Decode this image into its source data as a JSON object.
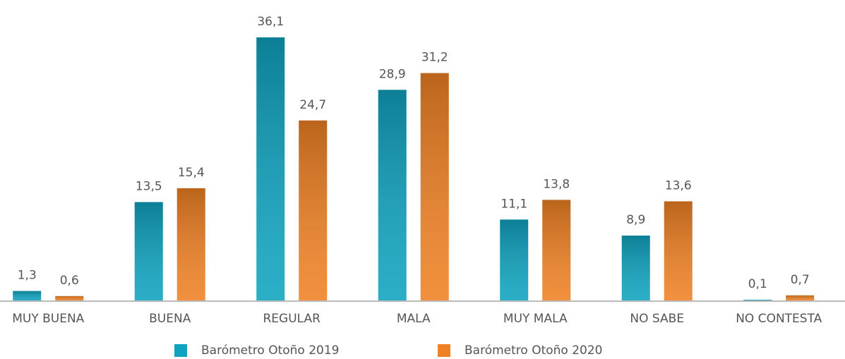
{
  "chart_data": {
    "type": "bar",
    "categories": [
      "MUY BUENA",
      "BUENA",
      "REGULAR",
      "MALA",
      "MUY MALA",
      "NO SABE",
      "NO CONTESTA"
    ],
    "series": [
      {
        "name": "Barómetro Otoño 2019",
        "color": "#0fa3c0",
        "values": [
          1.3,
          13.5,
          36.1,
          28.9,
          11.1,
          8.9,
          0.1
        ],
        "value_labels": [
          "1,3",
          "13,5",
          "36,1",
          "28,9",
          "11,1",
          "8,9",
          "0,1"
        ]
      },
      {
        "name": "Barómetro Otoño 2020",
        "color": "#ef8124",
        "values": [
          0.6,
          15.4,
          24.7,
          31.2,
          13.8,
          13.6,
          0.7
        ],
        "value_labels": [
          "0,6",
          "15,4",
          "24,7",
          "31,2",
          "13,8",
          "13,6",
          "0,7"
        ]
      }
    ]
  }
}
